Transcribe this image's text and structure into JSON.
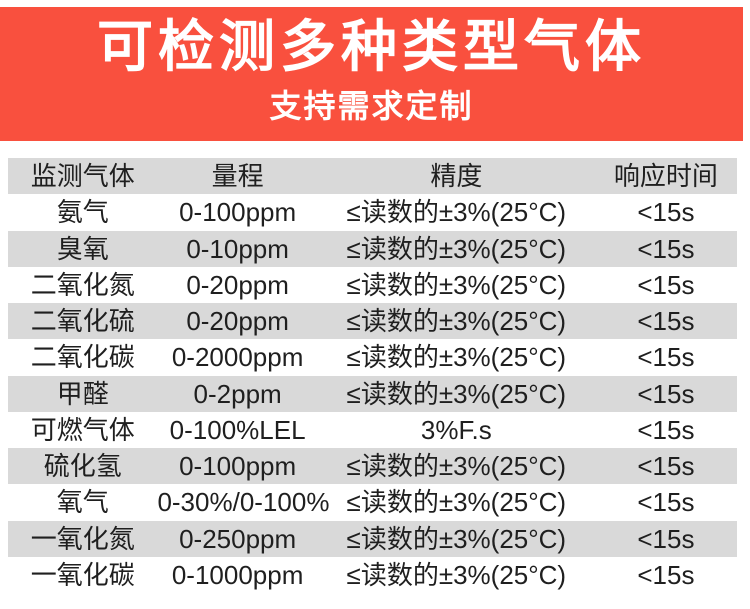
{
  "banner": {
    "title": "可检测多种类型气体",
    "subtitle": "支持需求定制",
    "bg_color": "#f9503e",
    "text_color": "#ffffff"
  },
  "table": {
    "stripe_color": "#d9d9d9",
    "text_color": "#1f1f1f",
    "columns": [
      "监测气体",
      "量程",
      "精度",
      "响应时间"
    ],
    "rows": [
      {
        "gas": "氨气",
        "range": "0-100ppm",
        "accuracy": "≤读数的±3%(25°C)",
        "response": "<15s"
      },
      {
        "gas": "臭氧",
        "range": "0-10ppm",
        "accuracy": "≤读数的±3%(25°C)",
        "response": "<15s"
      },
      {
        "gas": "二氧化氮",
        "range": "0-20ppm",
        "accuracy": "≤读数的±3%(25°C)",
        "response": "<15s"
      },
      {
        "gas": "二氧化硫",
        "range": "0-20ppm",
        "accuracy": "≤读数的±3%(25°C)",
        "response": "<15s"
      },
      {
        "gas": "二氧化碳",
        "range": "0-2000ppm",
        "accuracy": "≤读数的±3%(25°C)",
        "response": "<15s"
      },
      {
        "gas": "甲醛",
        "range": "0-2ppm",
        "accuracy": "≤读数的±3%(25°C)",
        "response": "<15s"
      },
      {
        "gas": "可燃气体",
        "range": "0-100%LEL",
        "accuracy": "3%F.s",
        "response": "<15s"
      },
      {
        "gas": "硫化氢",
        "range": "0-100ppm",
        "accuracy": "≤读数的±3%(25°C)",
        "response": "<15s"
      },
      {
        "gas": "氧气",
        "range": "0-30%/0-100%",
        "accuracy": "≤读数的±3%(25°C)",
        "response": "<15s"
      },
      {
        "gas": "一氧化氮",
        "range": "0-250ppm",
        "accuracy": "≤读数的±3%(25°C)",
        "response": "<15s"
      },
      {
        "gas": "一氧化碳",
        "range": "0-1000ppm",
        "accuracy": "≤读数的±3%(25°C)",
        "response": "<15s"
      }
    ]
  }
}
